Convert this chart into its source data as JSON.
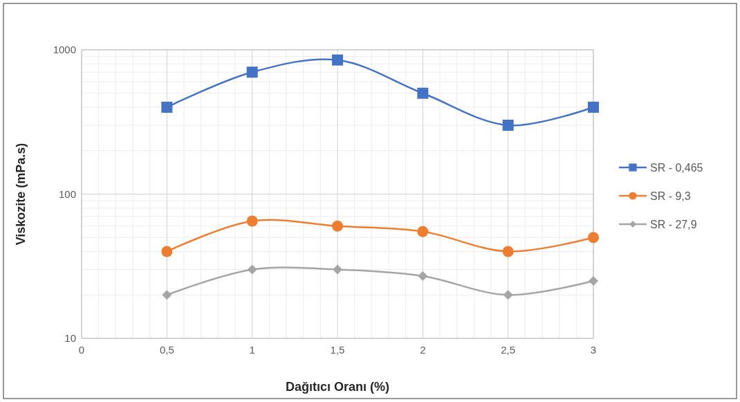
{
  "chart_data": {
    "type": "line",
    "xlabel": "Dağıtıcı Oranı (%)",
    "ylabel": "Viskozite (mPa.s)",
    "x": [
      0.5,
      1,
      1.5,
      2,
      2.5,
      3
    ],
    "series": [
      {
        "name": "SR - 0,465",
        "color": "#4472c4",
        "marker": "square",
        "values": [
          400,
          700,
          850,
          500,
          300,
          400
        ]
      },
      {
        "name": "SR - 9,3",
        "color": "#ed7d31",
        "marker": "circle",
        "values": [
          40,
          65,
          60,
          55,
          40,
          50
        ]
      },
      {
        "name": "SR - 27,9",
        "color": "#a5a5a5",
        "marker": "diamond",
        "values": [
          20,
          30,
          30,
          27,
          20,
          25
        ]
      }
    ],
    "xlim": [
      0,
      3
    ],
    "xticks": [
      0,
      {
        "value": 0.5,
        "label": "0,5"
      },
      1,
      {
        "value": 1.5,
        "label": "1,5"
      },
      2,
      {
        "value": 2.5,
        "label": "2,5"
      },
      3
    ],
    "ylim": [
      10,
      1000
    ],
    "yticks": [
      10,
      100,
      1000
    ],
    "log": true,
    "grid": true,
    "legend": "right",
    "line_style": "solid"
  }
}
